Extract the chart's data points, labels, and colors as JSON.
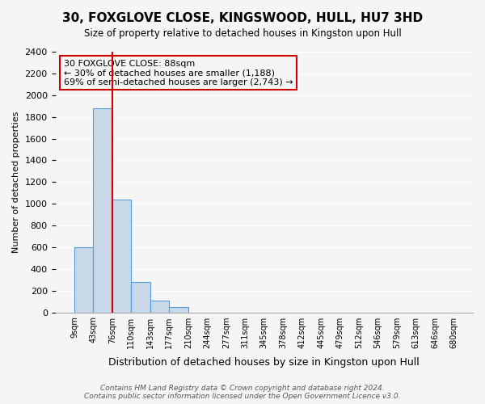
{
  "title": "30, FOXGLOVE CLOSE, KINGSWOOD, HULL, HU7 3HD",
  "subtitle": "Size of property relative to detached houses in Kingston upon Hull",
  "xlabel": "Distribution of detached houses by size in Kingston upon Hull",
  "ylabel": "Number of detached properties",
  "bin_labels": [
    "9sqm",
    "43sqm",
    "76sqm",
    "110sqm",
    "143sqm",
    "177sqm",
    "210sqm",
    "244sqm",
    "277sqm",
    "311sqm",
    "345sqm",
    "378sqm",
    "412sqm",
    "445sqm",
    "479sqm",
    "512sqm",
    "546sqm",
    "579sqm",
    "613sqm",
    "646sqm",
    "680sqm"
  ],
  "bar_values": [
    600,
    1880,
    1035,
    280,
    110,
    45,
    0,
    0,
    0,
    0,
    0,
    0,
    0,
    0,
    0,
    0,
    0,
    0,
    0,
    0
  ],
  "bar_color": "#c8d8e8",
  "bar_edge_color": "#5b9bd5",
  "vline_x_index": 2,
  "vline_color": "#cc0000",
  "ylim": [
    0,
    2400
  ],
  "yticks": [
    0,
    200,
    400,
    600,
    800,
    1000,
    1200,
    1400,
    1600,
    1800,
    2000,
    2200,
    2400
  ],
  "annotation_text": "30 FOXGLOVE CLOSE: 88sqm\n← 30% of detached houses are smaller (1,188)\n69% of semi-detached houses are larger (2,743) →",
  "annotation_box_edge": "#cc0000",
  "footer_line1": "Contains HM Land Registry data © Crown copyright and database right 2024.",
  "footer_line2": "Contains public sector information licensed under the Open Government Licence v3.0.",
  "bg_color": "#f5f5f5"
}
